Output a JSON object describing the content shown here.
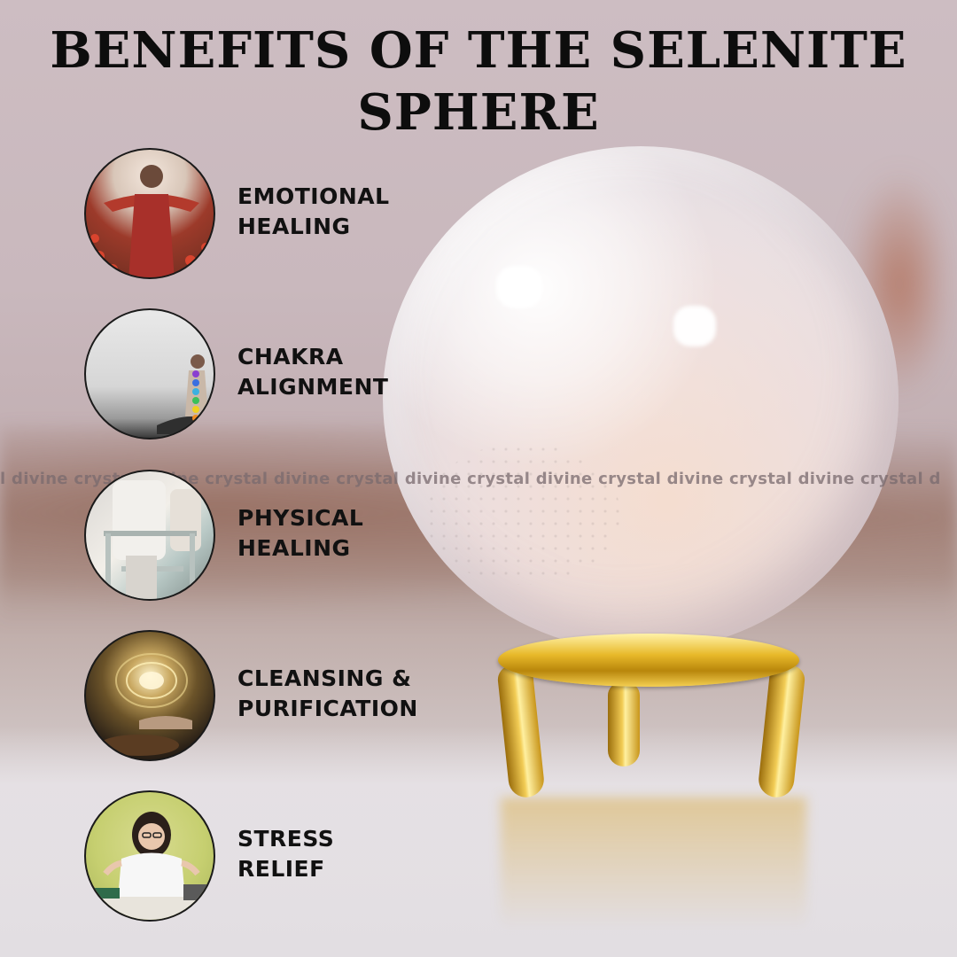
{
  "title": {
    "line1": "BENEFITS OF THE SELENITE",
    "line2": "SPHERE"
  },
  "watermark": "l divine crystal divine crystal divine crystal divine crystal divine crystal divine crystal divine crystal d",
  "benefits": [
    {
      "line1": "EMOTIONAL",
      "line2": "HEALING",
      "icon": "woman-in-flower-field-photo"
    },
    {
      "line1": "CHAKRA",
      "line2": "ALIGNMENT",
      "icon": "meditating-chakra-figure-photo"
    },
    {
      "line1": "PHYSICAL",
      "line2": "HEALING",
      "icon": "walker-assistance-photo"
    },
    {
      "line1": "CLEANSING &",
      "line2": "PURIFICATION",
      "icon": "singing-bowl-energy-photo"
    },
    {
      "line1": "STRESS",
      "line2": "RELIEF",
      "icon": "meditating-woman-desk-photo"
    }
  ],
  "colors": {
    "text": "#111111",
    "stand_gold": "#e8b92a",
    "sphere": "#f3ecee",
    "background": "#c9b8bd"
  }
}
